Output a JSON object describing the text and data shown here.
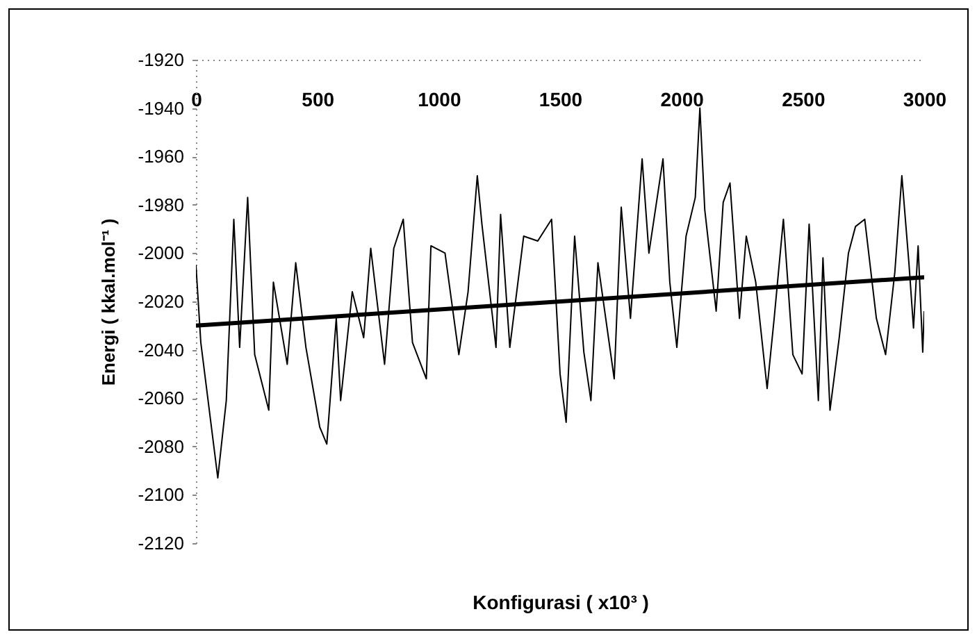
{
  "chart_data": {
    "type": "line",
    "xlabel": "Konfigurasi ( x10³ )",
    "ylabel": "Energi ( kkal.mol⁻¹ )",
    "xlim": [
      0,
      3000
    ],
    "xticks": [
      0,
      500,
      1000,
      1500,
      2000,
      2500,
      3000
    ],
    "ylim": [
      -2120,
      -1920
    ],
    "yticks": [
      -2120,
      -2100,
      -2080,
      -2060,
      -2040,
      -2020,
      -2000,
      -1980,
      -1960,
      -1940,
      -1920
    ],
    "grid": false,
    "legend": false,
    "marker": "none",
    "line_style": "solid",
    "series": [
      {
        "color": "#000000",
        "x": [
          0,
          20,
          90,
          125,
          156,
          180,
          213,
          242,
          300,
          319,
          376,
          411,
          453,
          510,
          539,
          578,
          596,
          644,
          691,
          720,
          777,
          815,
          854,
          892,
          949,
          968,
          1026,
          1083,
          1121,
          1159,
          1178,
          1236,
          1255,
          1293,
          1350,
          1408,
          1465,
          1500,
          1525,
          1560,
          1598,
          1627,
          1656,
          1723,
          1752,
          1790,
          1838,
          1866,
          1924,
          1952,
          1981,
          2019,
          2057,
          2076,
          2096,
          2143,
          2172,
          2200,
          2239,
          2267,
          2306,
          2353,
          2382,
          2420,
          2459,
          2497,
          2526,
          2564,
          2583,
          2612,
          2650,
          2688,
          2717,
          2755,
          2803,
          2841,
          2879,
          2908,
          2937,
          2956,
          2975,
          2994,
          3000
        ],
        "values": [
          -2005,
          -2037,
          -2093,
          -2061,
          -1986,
          -2039,
          -1977,
          -2042,
          -2065,
          -2012,
          -2046,
          -2004,
          -2039,
          -2072,
          -2079,
          -2027,
          -2061,
          -2016,
          -2035,
          -1998,
          -2046,
          -1998,
          -1986,
          -2037,
          -2052,
          -1997,
          -2000,
          -2042,
          -2016,
          -1968,
          -1988,
          -2039,
          -1984,
          -2039,
          -1993,
          -1995,
          -1986,
          -2050,
          -2070,
          -1993,
          -2041,
          -2061,
          -2004,
          -2052,
          -1981,
          -2027,
          -1961,
          -2000,
          -1961,
          -2012,
          -2039,
          -1993,
          -1977,
          -1940,
          -1982,
          -2024,
          -1979,
          -1971,
          -2027,
          -1993,
          -2012,
          -2056,
          -2027,
          -1986,
          -2042,
          -2050,
          -1988,
          -2061,
          -2002,
          -2065,
          -2035,
          -2000,
          -1989,
          -1986,
          -2027,
          -2042,
          -2008,
          -1968,
          -2004,
          -2031,
          -1997,
          -2041,
          -2024
        ]
      },
      {
        "type": "line",
        "color": "#000000",
        "x": [
          0,
          3000
        ],
        "values": [
          -2030,
          -2010
        ]
      }
    ]
  }
}
